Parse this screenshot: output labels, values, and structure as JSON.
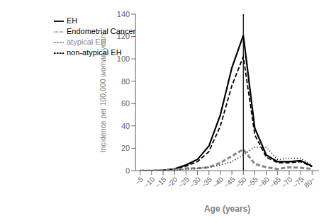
{
  "chart_data": {
    "type": "line",
    "x": [
      5,
      10,
      15,
      20,
      25,
      30,
      35,
      40,
      45,
      50,
      55,
      60,
      65,
      70,
      75,
      80
    ],
    "series": [
      {
        "name": "EH",
        "color": "#000000",
        "line_style": "solid",
        "values": [
          0,
          0,
          0.3,
          1.5,
          5,
          10,
          22,
          50,
          92,
          121,
          38,
          14,
          8,
          8,
          9,
          4
        ]
      },
      {
        "name": "non-atypical EH",
        "color": "#000000",
        "line_style": "dashed",
        "values": [
          0,
          0,
          0.3,
          1.5,
          4,
          8,
          17,
          40,
          76,
          102,
          32,
          12,
          7,
          7,
          8,
          3.5
        ]
      },
      {
        "name": "atypical EH",
        "color": "#888888",
        "line_style": "dashed",
        "values": [
          0,
          0,
          0,
          1,
          2,
          2,
          3,
          7,
          13,
          19,
          6,
          3,
          1.5,
          3,
          2.5,
          1.5
        ]
      },
      {
        "name": "Endometrial Cancer",
        "color": "#000000",
        "line_style": "dotted",
        "values": [
          0,
          0,
          0,
          0.5,
          1,
          2,
          3,
          5,
          8,
          14,
          21,
          21,
          10,
          11,
          11,
          5
        ]
      }
    ],
    "vline": 50,
    "xlim": [
      3,
      83
    ],
    "xticks": [
      {
        "value": 5,
        "label": "~5"
      },
      {
        "value": 10,
        "label": "~10"
      },
      {
        "value": 15,
        "label": "~15"
      },
      {
        "value": 20,
        "label": "~20"
      },
      {
        "value": 25,
        "label": "~25"
      },
      {
        "value": 30,
        "label": "~30"
      },
      {
        "value": 35,
        "label": "~35"
      },
      {
        "value": 40,
        "label": "~40"
      },
      {
        "value": 45,
        "label": "~45"
      },
      {
        "value": 50,
        "label": "~50"
      },
      {
        "value": 55,
        "label": "~55"
      },
      {
        "value": 60,
        "label": "~60"
      },
      {
        "value": 65,
        "label": "~65"
      },
      {
        "value": 70,
        "label": "~70"
      },
      {
        "value": 75,
        "label": "~75"
      },
      {
        "value": 80,
        "label": "80~"
      }
    ],
    "ylim": [
      0,
      140
    ],
    "yticks": [
      0,
      20,
      40,
      60,
      80,
      100,
      120,
      140
    ],
    "xlabel": "Age (years)",
    "ylabel": "Incidence per 100,000 woman-years",
    "grid": false,
    "legend": "upper left"
  }
}
